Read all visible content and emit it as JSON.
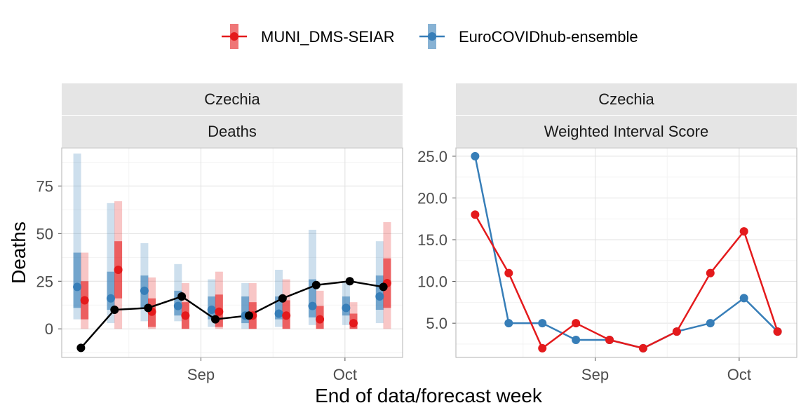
{
  "colors": {
    "muni": "#e41a1c",
    "ensemble": "#377eb8",
    "observed": "#000000"
  },
  "legend": [
    {
      "name": "MUNI_DMS-SEIAR",
      "color": "#e41a1c"
    },
    {
      "name": "EuroCOVIDhub-ensemble",
      "color": "#377eb8"
    }
  ],
  "xlabel": "End of data/forecast week",
  "chart_data": [
    {
      "type": "line",
      "strips": [
        "Czechia",
        "Deaths"
      ],
      "ylabel": "Deaths",
      "x": [
        "2021-07-24",
        "2021-07-31",
        "2021-08-07",
        "2021-08-14",
        "2021-08-21",
        "2021-08-28",
        "2021-09-04",
        "2021-09-11",
        "2021-09-18",
        "2021-09-25",
        "2021-10-02",
        "2021-10-09"
      ],
      "x_ticks": [
        {
          "label": "Sep",
          "date": "2021-09-01"
        },
        {
          "label": "Oct",
          "date": "2021-10-01"
        }
      ],
      "ylim": [
        -15,
        95
      ],
      "y_ticks": [
        0,
        25,
        50,
        75
      ],
      "observed": [
        {
          "date": "2021-08-07",
          "value": -10
        },
        {
          "date": "2021-08-14",
          "value": 10
        },
        {
          "date": "2021-08-21",
          "value": 11
        },
        {
          "date": "2021-08-28",
          "value": 17
        },
        {
          "date": "2021-09-04",
          "value": 5
        },
        {
          "date": "2021-09-11",
          "value": 7
        },
        {
          "date": "2021-09-18",
          "value": 16
        },
        {
          "date": "2021-09-25",
          "value": 23
        },
        {
          "date": "2021-10-02",
          "value": 25
        },
        {
          "date": "2021-10-09",
          "value": 22
        }
      ],
      "forecasts": [
        {
          "model": "EuroCOVIDhub-ensemble",
          "points": [
            {
              "date": "2021-08-07",
              "median": 22,
              "i50": [
                11,
                40
              ],
              "i90": [
                5,
                92
              ]
            },
            {
              "date": "2021-08-14",
              "median": 16,
              "i50": [
                10,
                30
              ],
              "i90": [
                3,
                66
              ]
            },
            {
              "date": "2021-08-21",
              "median": 20,
              "i50": [
                11,
                28
              ],
              "i90": [
                4,
                45
              ]
            },
            {
              "date": "2021-08-28",
              "median": 12,
              "i50": [
                7,
                20
              ],
              "i90": [
                4,
                34
              ]
            },
            {
              "date": "2021-09-04",
              "median": 10,
              "i50": [
                5,
                17
              ],
              "i90": [
                1,
                26
              ]
            },
            {
              "date": "2021-09-11",
              "median": 7,
              "i50": [
                3,
                17
              ],
              "i90": [
                0,
                24
              ]
            },
            {
              "date": "2021-09-18",
              "median": 8,
              "i50": [
                5,
                17
              ],
              "i90": [
                1,
                31
              ]
            },
            {
              "date": "2021-09-25",
              "median": 12,
              "i50": [
                6,
                26
              ],
              "i90": [
                2,
                52
              ]
            },
            {
              "date": "2021-10-02",
              "median": 11,
              "i50": [
                7,
                17
              ],
              "i90": [
                2,
                25
              ]
            },
            {
              "date": "2021-10-09",
              "median": 17,
              "i50": [
                10,
                28
              ],
              "i90": [
                3,
                46
              ]
            }
          ]
        },
        {
          "model": "MUNI_DMS-SEIAR",
          "points": [
            {
              "date": "2021-08-07",
              "median": 15,
              "i50": [
                5,
                25
              ],
              "i90": [
                0,
                40
              ]
            },
            {
              "date": "2021-08-14",
              "median": 31,
              "i50": [
                16,
                46
              ],
              "i90": [
                0,
                67
              ]
            },
            {
              "date": "2021-08-21",
              "median": 9,
              "i50": [
                1,
                16
              ],
              "i90": [
                0,
                27
              ]
            },
            {
              "date": "2021-08-28",
              "median": 7,
              "i50": [
                0,
                14
              ],
              "i90": [
                0,
                24
              ]
            },
            {
              "date": "2021-09-04",
              "median": 9,
              "i50": [
                1,
                18
              ],
              "i90": [
                0,
                30
              ]
            },
            {
              "date": "2021-09-11",
              "median": 7,
              "i50": [
                0,
                14
              ],
              "i90": [
                0,
                24
              ]
            },
            {
              "date": "2021-09-18",
              "median": 7,
              "i50": [
                0,
                15
              ],
              "i90": [
                0,
                26
              ]
            },
            {
              "date": "2021-09-25",
              "median": 5,
              "i50": [
                0,
                12
              ],
              "i90": [
                0,
                20
              ]
            },
            {
              "date": "2021-10-02",
              "median": 3,
              "i50": [
                0,
                8
              ],
              "i90": [
                0,
                14
              ]
            },
            {
              "date": "2021-10-09",
              "median": 24,
              "i50": [
                11,
                37
              ],
              "i90": [
                0,
                56
              ]
            }
          ]
        }
      ]
    },
    {
      "type": "line",
      "strips": [
        "Czechia",
        "Weighted Interval Score"
      ],
      "x": [
        "2021-08-07",
        "2021-08-14",
        "2021-08-21",
        "2021-08-28",
        "2021-09-04",
        "2021-09-11",
        "2021-09-18",
        "2021-09-25",
        "2021-10-02",
        "2021-10-09"
      ],
      "x_ticks": [
        {
          "label": "Sep",
          "date": "2021-09-01"
        },
        {
          "label": "Oct",
          "date": "2021-10-01"
        }
      ],
      "ylim": [
        0.9,
        26
      ],
      "y_ticks": [
        5.0,
        10.0,
        15.0,
        20.0,
        25.0
      ],
      "y_tick_labels": [
        "5.0",
        "10.0",
        "15.0",
        "20.0",
        "25.0"
      ],
      "series": [
        {
          "name": "MUNI_DMS-SEIAR",
          "values": [
            18,
            11,
            2,
            5,
            3,
            2,
            4,
            11,
            16,
            4
          ]
        },
        {
          "name": "EuroCOVIDhub-ensemble",
          "values": [
            25,
            5,
            5,
            3,
            3,
            2,
            4,
            5,
            8,
            4
          ]
        }
      ]
    }
  ]
}
